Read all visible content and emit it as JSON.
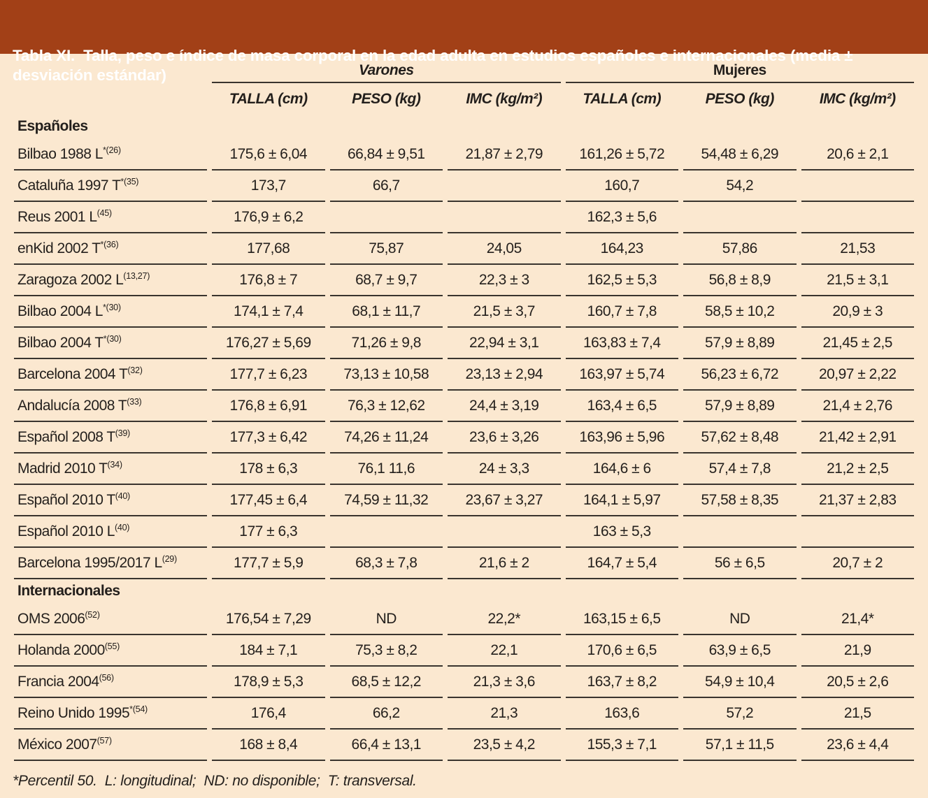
{
  "title": "Tabla XI.  Talla, peso e índice de masa corporal en la edad adulta en estudios españoles e internacionales (media ± desviación estándar)",
  "colors": {
    "banner_background": "#A24017",
    "banner_text": "#FFFFFF",
    "page_background": "#FBE8D0",
    "rule_line": "#39342E",
    "body_text": "#231F1C"
  },
  "table": {
    "group_headers": [
      "Varones",
      "Mujeres"
    ],
    "column_headers": [
      "TALLA (cm)",
      "PESO (kg)",
      "IMC (kg/m²)",
      "TALLA (cm)",
      "PESO (kg)",
      "IMC (kg/m²)"
    ],
    "sections": [
      {
        "label": "Españoles",
        "rows": [
          {
            "study": "Bilbao 1988 L",
            "ref": "*(26)",
            "values": [
              "175,6 ± 6,04",
              "66,84 ± 9,51",
              "21,87 ± 2,79",
              "161,26 ± 5,72",
              "54,48 ± 6,29",
              "20,6 ± 2,1"
            ]
          },
          {
            "study": "Cataluña 1997 T",
            "ref": "*(35)",
            "values": [
              "173,7",
              "66,7",
              "",
              "160,7",
              "54,2",
              ""
            ]
          },
          {
            "study": "Reus 2001 L",
            "ref": "(45)",
            "values": [
              "176,9 ± 6,2",
              "",
              "",
              "162,3 ± 5,6",
              "",
              ""
            ]
          },
          {
            "study": "enKid 2002 T",
            "ref": "*(36)",
            "values": [
              "177,68",
              "75,87",
              "24,05",
              "164,23",
              "57,86",
              "21,53"
            ]
          },
          {
            "study": "Zaragoza 2002 L",
            "ref": "(13,27)",
            "values": [
              "176,8 ± 7",
              "68,7 ± 9,7",
              "22,3 ± 3",
              "162,5 ± 5,3",
              "56,8 ± 8,9",
              "21,5 ± 3,1"
            ]
          },
          {
            "study": "Bilbao 2004 L",
            "ref": "*(30)",
            "values": [
              "174,1 ± 7,4",
              "68,1 ± 11,7",
              "21,5 ± 3,7",
              "160,7 ± 7,8",
              "58,5 ± 10,2",
              "20,9 ± 3"
            ]
          },
          {
            "study": "Bilbao 2004 T",
            "ref": "*(30)",
            "values": [
              "176,27 ± 5,69",
              "71,26 ± 9,8",
              "22,94 ± 3,1",
              "163,83 ± 7,4",
              "57,9 ± 8,89",
              "21,45 ± 2,5"
            ]
          },
          {
            "study": "Barcelona 2004 T",
            "ref": "(32)",
            "values": [
              "177,7 ± 6,23",
              "73,13 ± 10,58",
              "23,13 ± 2,94",
              "163,97 ± 5,74",
              "56,23 ± 6,72",
              "20,97 ± 2,22"
            ]
          },
          {
            "study": "Andalucía 2008 T",
            "ref": "(33)",
            "values": [
              "176,8 ± 6,91",
              "76,3 ± 12,62",
              "24,4 ± 3,19",
              "163,4 ± 6,5",
              "57,9 ± 8,89",
              "21,4 ± 2,76"
            ]
          },
          {
            "study": "Español 2008 T",
            "ref": "(39)",
            "values": [
              "177,3 ± 6,42",
              "74,26 ± 11,24",
              "23,6 ± 3,26",
              "163,96 ± 5,96",
              "57,62 ± 8,48",
              "21,42 ± 2,91"
            ]
          },
          {
            "study": "Madrid 2010 T",
            "ref": "(34)",
            "values": [
              "178 ± 6,3",
              "76,1 11,6",
              "24 ± 3,3",
              "164,6 ± 6",
              "57,4 ± 7,8",
              "21,2 ± 2,5"
            ]
          },
          {
            "study": "Español 2010 T",
            "ref": "(40)",
            "values": [
              "177,45 ± 6,4",
              "74,59 ± 11,32",
              "23,67 ± 3,27",
              "164,1 ± 5,97",
              "57,58 ± 8,35",
              "21,37 ± 2,83"
            ]
          },
          {
            "study": "Español 2010 L",
            "ref": "(40)",
            "values": [
              "177 ± 6,3",
              "",
              "",
              "163 ± 5,3",
              "",
              ""
            ]
          },
          {
            "study": "Barcelona 1995/2017 L",
            "ref": "(29)",
            "values": [
              "177,7 ± 5,9",
              "68,3 ± 7,8",
              "21,6 ± 2",
              "164,7 ± 5,4",
              "56 ± 6,5",
              "20,7 ± 2"
            ]
          }
        ]
      },
      {
        "label": "Internacionales",
        "rows": [
          {
            "study": "OMS 2006",
            "ref": "(52)",
            "values": [
              "176,54 ± 7,29",
              "ND",
              "22,2*",
              "163,15 ± 6,5",
              "ND",
              "21,4*"
            ]
          },
          {
            "study": "Holanda 2000",
            "ref": "(55)",
            "values": [
              "184 ± 7,1",
              "75,3 ± 8,2",
              "22,1",
              "170,6 ± 6,5",
              "63,9 ± 6,5",
              "21,9"
            ]
          },
          {
            "study": "Francia 2004",
            "ref": "(56)",
            "values": [
              "178,9 ± 5,3",
              "68,5 ± 12,2",
              "21,3 ± 3,6",
              "163,7 ± 8,2",
              "54,9 ± 10,4",
              "20,5 ± 2,6"
            ]
          },
          {
            "study": "Reino Unido 1995",
            "ref": "*(54)",
            "values": [
              "176,4",
              "66,2",
              "21,3",
              "163,6",
              "57,2",
              "21,5"
            ]
          },
          {
            "study": "México 2007",
            "ref": "(57)",
            "values": [
              "168 ± 8,4",
              "66,4 ± 13,1",
              "23,5 ± 4,2",
              "155,3 ± 7,1",
              "57,1 ± 11,5",
              "23,6 ± 4,4"
            ]
          }
        ]
      }
    ]
  },
  "footnote": "*Percentil 50.  L: longitudinal;  ND: no disponible;  T: transversal."
}
